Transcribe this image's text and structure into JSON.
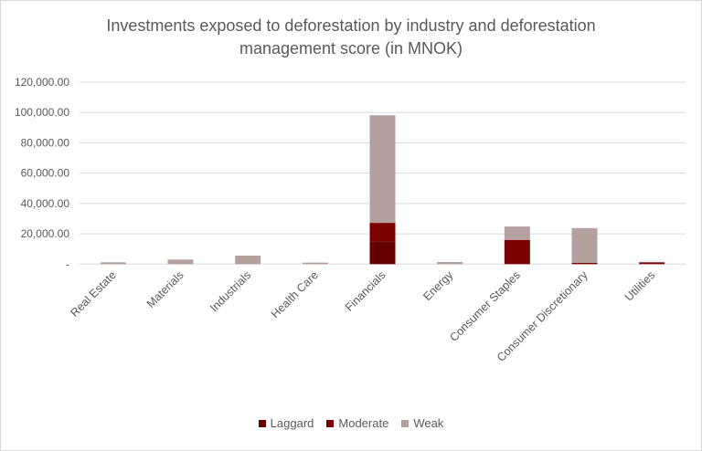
{
  "chart_data": {
    "type": "bar",
    "stacked": true,
    "title": "Investments exposed to deforestation by industry and deforestation management score (in MNOK)",
    "title_lines": [
      "Investments exposed to deforestation by industry and deforestation",
      "management score (in MNOK)"
    ],
    "xlabel": "",
    "ylabel": "",
    "ylim": [
      0,
      120000
    ],
    "yticks": [
      0,
      20000,
      40000,
      60000,
      80000,
      100000,
      120000
    ],
    "ytick_labels": [
      "-",
      "20,000.00",
      "40,000.00",
      "60,000.00",
      "80,000.00",
      "100,000.00",
      "120,000.00"
    ],
    "grid": true,
    "legend_position": "bottom",
    "categories": [
      "Real Estate",
      "Materials",
      "Industrials",
      "Health Care",
      "Financials",
      "Energy",
      "Consumer Staples",
      "Consumer Discretionary",
      "Utilities"
    ],
    "series": [
      {
        "name": "Laggard",
        "color": "#640000",
        "values": [
          0,
          0,
          0,
          0,
          15000,
          0,
          0,
          0,
          0
        ]
      },
      {
        "name": "Moderate",
        "color": "#7b0000",
        "values": [
          0,
          0,
          0,
          0,
          12200,
          0,
          16000,
          900,
          1200
        ]
      },
      {
        "name": "Weak",
        "color": "#b5a0a0",
        "values": [
          1200,
          3000,
          5600,
          1000,
          71000,
          1400,
          8800,
          22900,
          0
        ]
      }
    ]
  }
}
